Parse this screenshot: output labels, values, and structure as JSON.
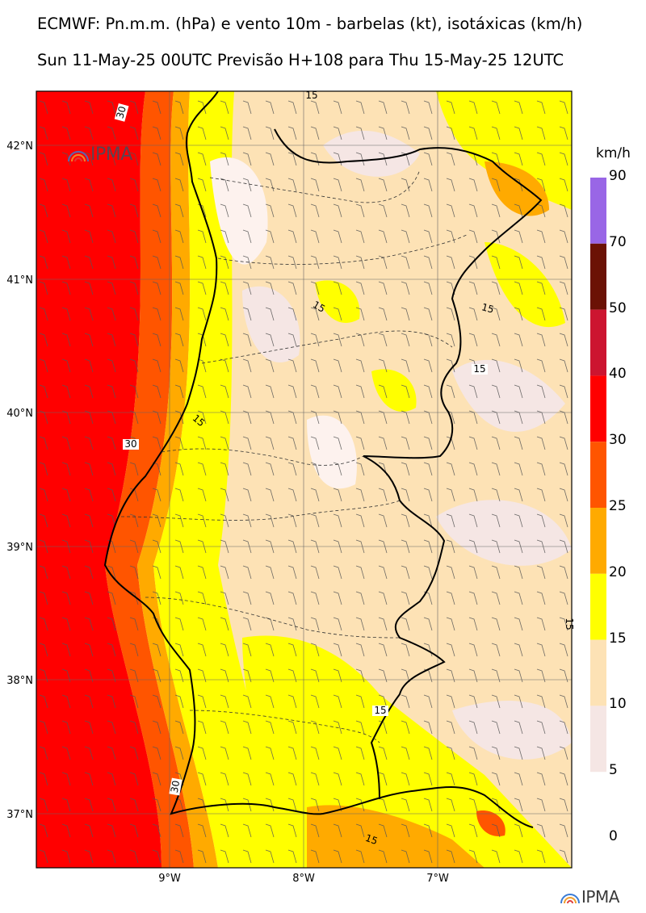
{
  "header": {
    "title": "ECMWF: Pn.m.m. (hPa) e vento 10m - barbelas (kt), isotáxicas (km/h)",
    "subtitle": "Sun 11-May-25 00UTC Previsão H+108 para Thu 15-May-25 12UTC"
  },
  "map": {
    "lat_ticks": [
      "42°N",
      "41°N",
      "40°N",
      "39°N",
      "38°N",
      "37°N"
    ],
    "lon_ticks": [
      "9°W",
      "8°W",
      "7°W"
    ],
    "contour_labels": [
      "30",
      "30",
      "30",
      "15",
      "15",
      "15",
      "15",
      "15",
      "15",
      "15",
      "15"
    ]
  },
  "colorbar": {
    "unit": "km/h",
    "levels": [
      "90",
      "70",
      "50",
      "40",
      "30",
      "25",
      "20",
      "15",
      "10",
      "5",
      "0"
    ],
    "colors": [
      "#9966e6",
      "#6b1205",
      "#cc1530",
      "#ff0000",
      "#ff5500",
      "#ffaa00",
      "#ffff00",
      "#fde2b5",
      "#f5e6e4"
    ]
  },
  "logos": {
    "map_logo": "IPMA",
    "footer_logo": "IPMA"
  }
}
